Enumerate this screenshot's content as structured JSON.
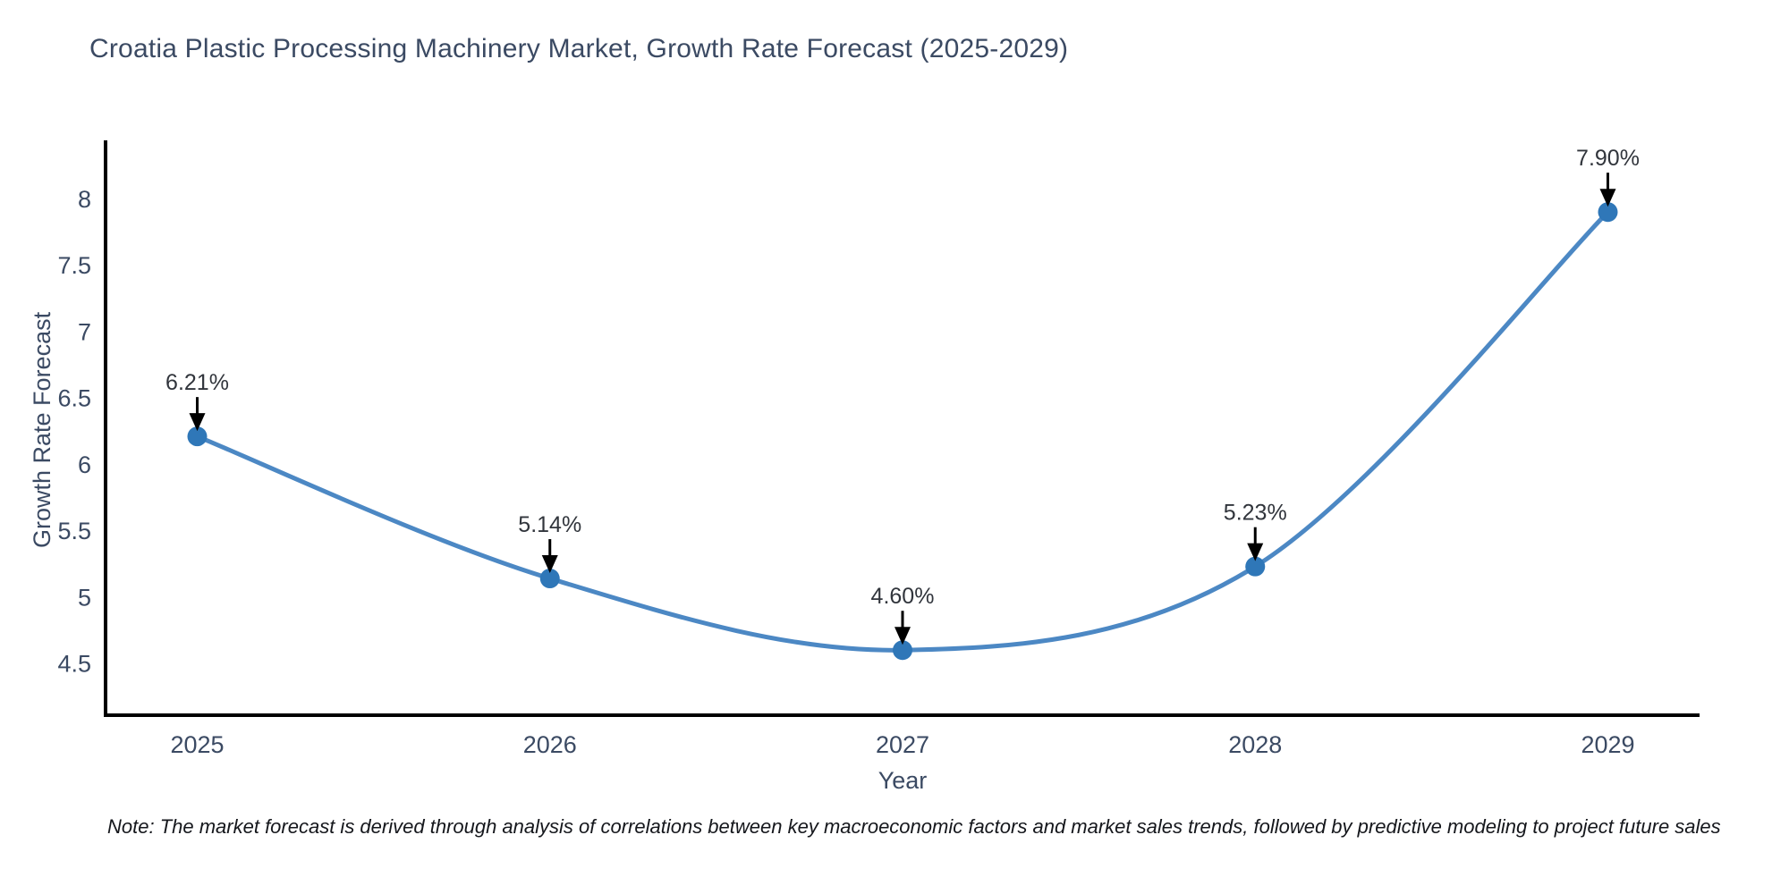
{
  "page": {
    "note": "Note: The market forecast is derived through analysis of correlations between key macroeconomic factors and market sales trends, followed by predictive modeling to project future sales"
  },
  "chart_data": {
    "type": "line",
    "title": "Croatia Plastic Processing Machinery Market, Growth Rate Forecast (2025-2029)",
    "xlabel": "Year",
    "ylabel": "Growth Rate Forecast",
    "x": [
      2025,
      2026,
      2027,
      2028,
      2029
    ],
    "y": [
      6.21,
      5.14,
      4.6,
      5.23,
      7.9
    ],
    "point_labels": [
      "6.21%",
      "5.14%",
      "4.60%",
      "5.23%",
      "7.90%"
    ],
    "series_name": "Growth Rate Forecast",
    "line_shape": "spline",
    "grid": false,
    "legend_position": "none",
    "xticks": {
      "values": [
        2025,
        2026,
        2027,
        2028,
        2029
      ],
      "labels": [
        "2025",
        "2026",
        "2027",
        "2028",
        "2029"
      ]
    },
    "yticks": {
      "values": [
        4.5,
        5,
        5.5,
        6,
        6.5,
        7,
        7.5,
        8
      ],
      "labels": [
        "4.5",
        "5",
        "5.5",
        "6",
        "6.5",
        "7",
        "7.5",
        "8"
      ]
    },
    "xlim": [
      2024.74,
      2029.26
    ],
    "ylim": [
      4.11,
      8.44
    ],
    "colors": {
      "line": "#4c88c4",
      "marker": "#2f77b8",
      "axis_line": "#000000",
      "axis_text": "#3b4a63",
      "annotation_text": "#31353c",
      "annotation_arrow": "#000000",
      "background": "#ffffff"
    }
  }
}
